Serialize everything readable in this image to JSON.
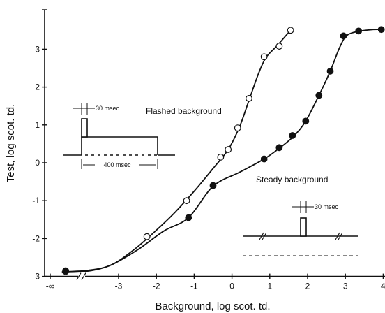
{
  "chart_data": {
    "type": "scatter",
    "xlabel": "Background, log scot. td.",
    "ylabel": "Test, log scot. td.",
    "xlim": [
      -4.5,
      4
    ],
    "ylim": [
      -3,
      4
    ],
    "x_ticks": [
      {
        "v": -3,
        "label": "-3"
      },
      {
        "v": -2,
        "label": "-2"
      },
      {
        "v": -1,
        "label": "-1"
      },
      {
        "v": 0,
        "label": "0"
      },
      {
        "v": 1,
        "label": "1"
      },
      {
        "v": 2,
        "label": "2"
      },
      {
        "v": 3,
        "label": "3"
      },
      {
        "v": 4,
        "label": "4"
      }
    ],
    "x_special_label": "-∞",
    "y_ticks": [
      {
        "v": -3,
        "label": "-3"
      },
      {
        "v": -2,
        "label": "-2"
      },
      {
        "v": -1,
        "label": "-1"
      },
      {
        "v": 0,
        "label": "0"
      },
      {
        "v": 1,
        "label": "1"
      },
      {
        "v": 2,
        "label": "2"
      },
      {
        "v": 3,
        "label": "3"
      }
    ],
    "series": [
      {
        "name": "Flashed background",
        "marker": "open-circle",
        "points": [
          {
            "x": -4.4,
            "y": -2.87
          },
          {
            "x": -2.25,
            "y": -1.95
          },
          {
            "x": -1.2,
            "y": -1.0
          },
          {
            "x": -0.3,
            "y": 0.15
          },
          {
            "x": -0.1,
            "y": 0.35
          },
          {
            "x": 0.15,
            "y": 0.92
          },
          {
            "x": 0.45,
            "y": 1.7
          },
          {
            "x": 0.85,
            "y": 2.8
          },
          {
            "x": 1.25,
            "y": 3.08
          },
          {
            "x": 1.55,
            "y": 3.5
          }
        ]
      },
      {
        "name": "Steady background",
        "marker": "filled-circle",
        "points": [
          {
            "x": -4.4,
            "y": -2.85
          },
          {
            "x": -1.15,
            "y": -1.45
          },
          {
            "x": -0.5,
            "y": -0.6
          },
          {
            "x": 0.85,
            "y": 0.1
          },
          {
            "x": 1.25,
            "y": 0.4
          },
          {
            "x": 1.6,
            "y": 0.72
          },
          {
            "x": 1.95,
            "y": 1.1
          },
          {
            "x": 2.3,
            "y": 1.78
          },
          {
            "x": 2.6,
            "y": 2.42
          },
          {
            "x": 2.95,
            "y": 3.35
          },
          {
            "x": 3.35,
            "y": 3.48
          },
          {
            "x": 3.95,
            "y": 3.52
          }
        ]
      }
    ],
    "curves": [
      {
        "name": "Flashed background",
        "points": [
          [
            -4.5,
            -2.88
          ],
          [
            -3.8,
            -2.84
          ],
          [
            -3.2,
            -2.7
          ],
          [
            -2.6,
            -2.3
          ],
          [
            -2.0,
            -1.78
          ],
          [
            -1.5,
            -1.3
          ],
          [
            -1.0,
            -0.75
          ],
          [
            -0.5,
            -0.15
          ],
          [
            -0.1,
            0.35
          ],
          [
            0.2,
            0.95
          ],
          [
            0.45,
            1.65
          ],
          [
            0.7,
            2.35
          ],
          [
            0.9,
            2.78
          ],
          [
            1.2,
            3.1
          ],
          [
            1.55,
            3.5
          ]
        ]
      },
      {
        "name": "Steady background",
        "points": [
          [
            -4.5,
            -2.9
          ],
          [
            -3.8,
            -2.86
          ],
          [
            -3.2,
            -2.7
          ],
          [
            -2.5,
            -2.3
          ],
          [
            -1.8,
            -1.8
          ],
          [
            -1.15,
            -1.45
          ],
          [
            -0.5,
            -0.62
          ],
          [
            0.2,
            -0.25
          ],
          [
            0.85,
            0.1
          ],
          [
            1.3,
            0.42
          ],
          [
            1.65,
            0.72
          ],
          [
            1.95,
            1.1
          ],
          [
            2.3,
            1.78
          ],
          [
            2.6,
            2.42
          ],
          [
            2.85,
            3.05
          ],
          [
            3.05,
            3.37
          ],
          [
            3.4,
            3.48
          ],
          [
            3.75,
            3.52
          ],
          [
            4.0,
            3.52
          ]
        ]
      }
    ],
    "annotations": {
      "flashed_label": "Flashed background",
      "steady_label": "Steady background",
      "inset1_duration_label": "30 msec",
      "inset1_interval_label": "400 msec",
      "inset2_duration_label": "30 msec"
    }
  }
}
